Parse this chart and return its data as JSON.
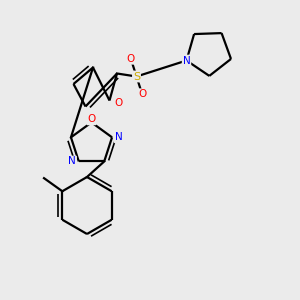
{
  "background_color": "#ebebeb",
  "bond_color": "#000000",
  "atom_colors": {
    "O": "#ff0000",
    "N": "#0000ff",
    "S": "#ccaa00",
    "C": "#000000"
  },
  "figsize": [
    3.0,
    3.0
  ],
  "dpi": 100
}
